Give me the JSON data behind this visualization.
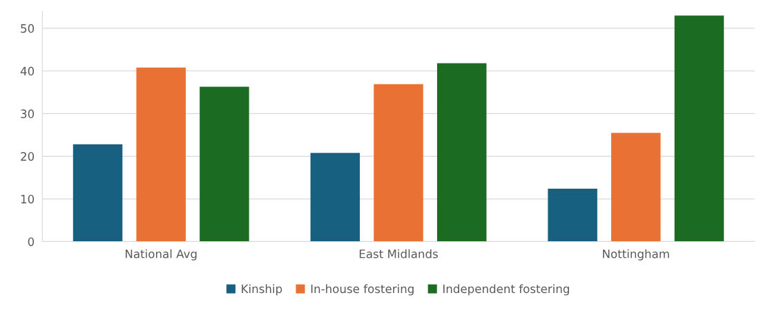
{
  "chart_data": {
    "type": "bar",
    "categories": [
      "National Avg",
      "East Midlands",
      "Nottingham"
    ],
    "series": [
      {
        "name": "Kinship",
        "color": "#17607f",
        "values": [
          22.8,
          20.8,
          12.4
        ]
      },
      {
        "name": "In-house fostering",
        "color": "#e87133",
        "values": [
          40.8,
          36.9,
          25.5
        ]
      },
      {
        "name": "Independent fostering",
        "color": "#1c6b23",
        "values": [
          36.3,
          41.8,
          53.0
        ]
      }
    ],
    "ylim": [
      0,
      54
    ],
    "yticks": [
      0,
      10,
      20,
      30,
      40,
      50
    ],
    "grid": "y",
    "legend": "bottom"
  }
}
